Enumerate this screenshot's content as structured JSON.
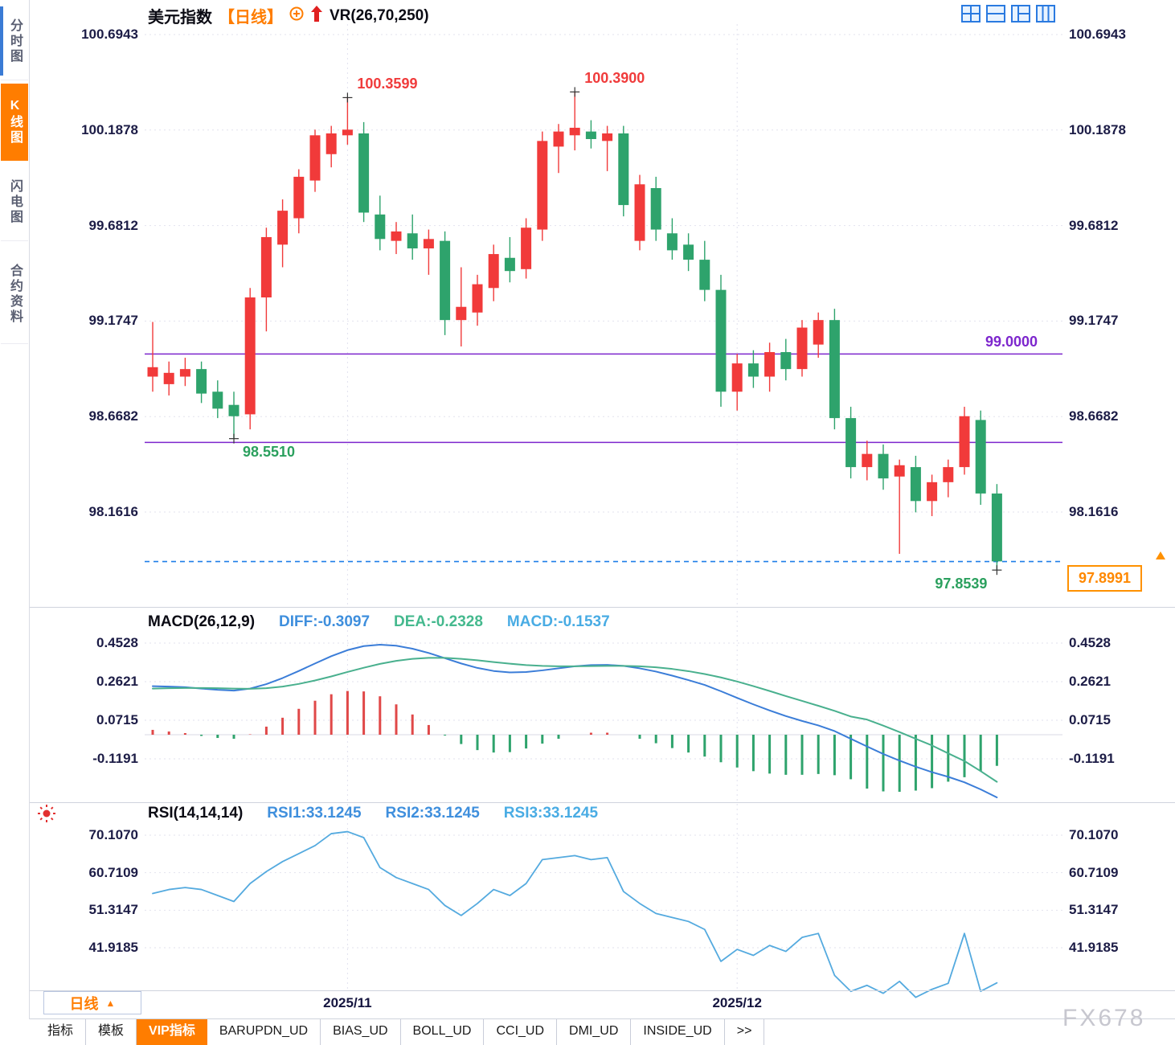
{
  "app": {
    "watermark": "FX678"
  },
  "sidebar": {
    "tabs": [
      {
        "label": "分时图",
        "active": false
      },
      {
        "label": "K线图",
        "active": true
      },
      {
        "label": "闪电图",
        "active": false
      },
      {
        "label": "合约资料",
        "active": false
      }
    ]
  },
  "bottom": {
    "period_label": "日线",
    "period_arrow": "▲",
    "tabs": [
      {
        "label": "指标",
        "active": false
      },
      {
        "label": "模板",
        "active": false
      },
      {
        "label": "VIP指标",
        "active": true
      },
      {
        "label": "BARUPDN_UD",
        "active": false
      },
      {
        "label": "BIAS_UD",
        "active": false
      },
      {
        "label": "BOLL_UD",
        "active": false
      },
      {
        "label": "CCI_UD",
        "active": false
      },
      {
        "label": "DMI_UD",
        "active": false
      },
      {
        "label": "INSIDE_UD",
        "active": false
      },
      {
        "label": ">>",
        "active": false
      }
    ]
  },
  "chart_data": [
    {
      "type": "candlestick",
      "title": "美元指数",
      "period": "【日线】",
      "indicator_label": "VR(26,70,250)",
      "y_ticks": [
        "100.6943",
        "100.1878",
        "99.6812",
        "99.1747",
        "98.6682",
        "98.1616"
      ],
      "x_axis_labels": [
        {
          "index": 12,
          "label": "2025/11"
        },
        {
          "index": 36,
          "label": "2025/12"
        }
      ],
      "up_color": "#f13a3a",
      "down_color": "#2ea36c",
      "hlines": [
        {
          "value": 99.0,
          "label": "99.0000",
          "color": "#7d26cd"
        },
        {
          "value": 98.531,
          "color": "#7d26cd"
        }
      ],
      "last_price": {
        "label": "97.8991",
        "value": 97.8991,
        "color": "#ff8800"
      },
      "annotations": [
        {
          "index": 12,
          "price": 100.3599,
          "label": "100.3599",
          "kind": "high"
        },
        {
          "index": 26,
          "price": 100.39,
          "label": "100.3900",
          "kind": "high"
        },
        {
          "index": 5,
          "price": 98.551,
          "label": "98.5510",
          "kind": "low"
        },
        {
          "index": 52,
          "price": 97.8539,
          "label": "97.8539",
          "kind": "low",
          "align": "end"
        }
      ],
      "candles": [
        [
          98.88,
          99.17,
          98.8,
          98.93
        ],
        [
          98.84,
          98.96,
          98.78,
          98.9
        ],
        [
          98.88,
          98.98,
          98.83,
          98.92
        ],
        [
          98.92,
          98.96,
          98.74,
          98.79
        ],
        [
          98.8,
          98.86,
          98.66,
          98.71
        ],
        [
          98.73,
          98.8,
          98.551,
          98.67
        ],
        [
          98.68,
          99.35,
          98.6,
          99.3
        ],
        [
          99.3,
          99.67,
          99.12,
          99.62
        ],
        [
          99.58,
          99.82,
          99.46,
          99.76
        ],
        [
          99.72,
          99.98,
          99.64,
          99.94
        ],
        [
          99.92,
          100.19,
          99.86,
          100.16
        ],
        [
          100.06,
          100.21,
          99.99,
          100.17
        ],
        [
          100.16,
          100.3599,
          100.11,
          100.19
        ],
        [
          100.17,
          100.23,
          99.7,
          99.75
        ],
        [
          99.74,
          99.84,
          99.55,
          99.61
        ],
        [
          99.6,
          99.7,
          99.53,
          99.65
        ],
        [
          99.64,
          99.74,
          99.5,
          99.56
        ],
        [
          99.56,
          99.66,
          99.42,
          99.61
        ],
        [
          99.6,
          99.65,
          99.1,
          99.18
        ],
        [
          99.18,
          99.46,
          99.04,
          99.25
        ],
        [
          99.22,
          99.42,
          99.15,
          99.37
        ],
        [
          99.35,
          99.58,
          99.28,
          99.53
        ],
        [
          99.51,
          99.62,
          99.38,
          99.44
        ],
        [
          99.45,
          99.72,
          99.4,
          99.67
        ],
        [
          99.66,
          100.18,
          99.6,
          100.13
        ],
        [
          100.1,
          100.22,
          99.96,
          100.18
        ],
        [
          100.16,
          100.39,
          100.08,
          100.2
        ],
        [
          100.18,
          100.24,
          100.09,
          100.14
        ],
        [
          100.13,
          100.21,
          99.97,
          100.17
        ],
        [
          100.17,
          100.21,
          99.73,
          99.79
        ],
        [
          99.6,
          99.95,
          99.55,
          99.9
        ],
        [
          99.88,
          99.94,
          99.6,
          99.66
        ],
        [
          99.64,
          99.72,
          99.5,
          99.55
        ],
        [
          99.58,
          99.64,
          99.44,
          99.5
        ],
        [
          99.5,
          99.6,
          99.28,
          99.34
        ],
        [
          99.34,
          99.42,
          98.72,
          98.8
        ],
        [
          98.8,
          99.0,
          98.7,
          98.95
        ],
        [
          98.95,
          99.02,
          98.82,
          98.88
        ],
        [
          98.88,
          99.06,
          98.8,
          99.01
        ],
        [
          99.01,
          99.08,
          98.86,
          98.92
        ],
        [
          98.92,
          99.18,
          98.88,
          99.14
        ],
        [
          99.05,
          99.22,
          98.98,
          99.18
        ],
        [
          99.18,
          99.24,
          98.6,
          98.66
        ],
        [
          98.66,
          98.72,
          98.34,
          98.4
        ],
        [
          98.4,
          98.54,
          98.33,
          98.47
        ],
        [
          98.47,
          98.52,
          98.28,
          98.34
        ],
        [
          98.35,
          98.44,
          97.94,
          98.41
        ],
        [
          98.4,
          98.46,
          98.16,
          98.22
        ],
        [
          98.22,
          98.36,
          98.14,
          98.32
        ],
        [
          98.32,
          98.44,
          98.24,
          98.4
        ],
        [
          98.4,
          98.72,
          98.36,
          98.67
        ],
        [
          98.65,
          98.7,
          98.2,
          98.26
        ],
        [
          98.26,
          98.31,
          97.8539,
          97.9
        ]
      ]
    },
    {
      "type": "macd",
      "params_label": "MACD(26,12,9)",
      "diff_label": "DIFF:-0.3097",
      "dea_label": "DEA:-0.2328",
      "macd_label": "MACD:-0.1537",
      "diff_color": "#3b7dd8",
      "dea_color": "#49b08e",
      "hist_up_color": "#e04848",
      "hist_down_color": "#2ea36c",
      "y_ticks": [
        "0.4528",
        "0.2621",
        "0.0715",
        "-0.1191"
      ],
      "diff": [
        0.24,
        0.238,
        0.235,
        0.228,
        0.222,
        0.218,
        0.228,
        0.25,
        0.28,
        0.315,
        0.352,
        0.388,
        0.418,
        0.438,
        0.445,
        0.44,
        0.425,
        0.404,
        0.378,
        0.352,
        0.33,
        0.315,
        0.308,
        0.31,
        0.318,
        0.328,
        0.338,
        0.344,
        0.345,
        0.34,
        0.328,
        0.312,
        0.292,
        0.27,
        0.246,
        0.215,
        0.182,
        0.15,
        0.12,
        0.092,
        0.068,
        0.046,
        0.018,
        -0.02,
        -0.058,
        -0.095,
        -0.128,
        -0.158,
        -0.185,
        -0.208,
        -0.235,
        -0.27,
        -0.3097
      ],
      "dea": [
        0.228,
        0.23,
        0.231,
        0.231,
        0.23,
        0.228,
        0.227,
        0.23,
        0.238,
        0.251,
        0.268,
        0.288,
        0.31,
        0.331,
        0.35,
        0.365,
        0.375,
        0.38,
        0.38,
        0.375,
        0.368,
        0.359,
        0.351,
        0.344,
        0.34,
        0.338,
        0.338,
        0.339,
        0.34,
        0.34,
        0.338,
        0.333,
        0.325,
        0.314,
        0.3,
        0.283,
        0.263,
        0.24,
        0.216,
        0.191,
        0.167,
        0.143,
        0.118,
        0.09,
        0.075,
        0.045,
        0.013,
        -0.02,
        -0.053,
        -0.092,
        -0.13,
        -0.18,
        -0.2328
      ]
    },
    {
      "type": "rsi",
      "params_label": "RSI(14,14,14)",
      "series_labels": [
        "RSI1:33.1245",
        "RSI2:33.1245",
        "RSI3:33.1245"
      ],
      "line_color": "#54aadf",
      "y_ticks": [
        "70.1070",
        "60.7109",
        "51.3147",
        "41.9185"
      ],
      "values": [
        55.5,
        56.5,
        57.0,
        56.5,
        55.0,
        53.5,
        58.0,
        61.0,
        63.5,
        65.5,
        67.5,
        70.5,
        71.0,
        69.5,
        62.0,
        59.5,
        58.0,
        56.5,
        52.5,
        50.0,
        53.0,
        56.5,
        55.0,
        58.0,
        64.0,
        64.5,
        65.0,
        64.0,
        64.5,
        56.0,
        53.0,
        50.5,
        49.5,
        48.5,
        46.5,
        38.5,
        41.5,
        40.0,
        42.5,
        41.0,
        44.5,
        45.5,
        35.0,
        31.0,
        32.5,
        30.5,
        33.5,
        29.5,
        31.5,
        33.0,
        45.5,
        31.0,
        33.1245
      ]
    }
  ]
}
